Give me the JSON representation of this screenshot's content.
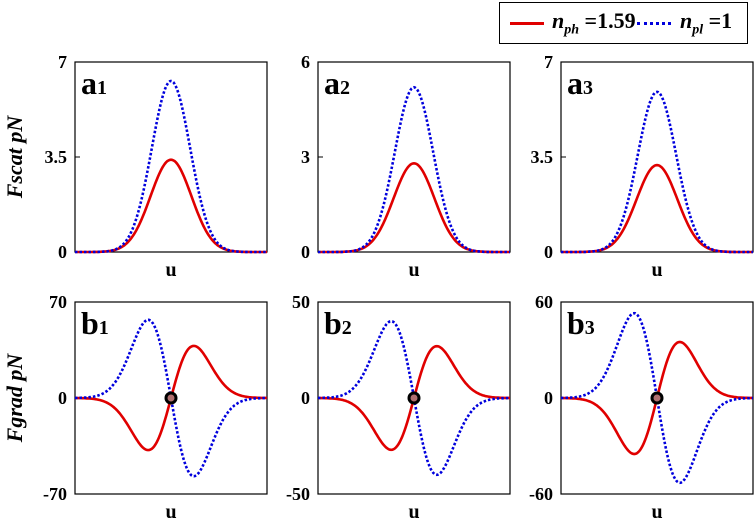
{
  "legend": {
    "series1": {
      "symbol": "n",
      "sub": "ph",
      "value": "=1.59",
      "color": "#e00000",
      "style": "solid"
    },
    "series2": {
      "symbol": "n",
      "sub": "pl",
      "value": "=1",
      "color": "#0000dd",
      "style": "dotted"
    }
  },
  "chart_data": [
    {
      "type": "line",
      "panel_label": "a",
      "panel_sub": "1",
      "xlabel": "u",
      "ylabel": "Fscat pN",
      "ylim": [
        0,
        7
      ],
      "yticks": [
        "0",
        "3.5",
        "7"
      ],
      "shape": "gaussian",
      "series": [
        {
          "values_peak": 3.4,
          "color": "#e00000",
          "style": "solid"
        },
        {
          "values_peak": 6.3,
          "color": "#0000dd",
          "style": "dotted"
        }
      ]
    },
    {
      "type": "line",
      "panel_label": "a",
      "panel_sub": "2",
      "xlabel": "u",
      "ylabel": "",
      "ylim": [
        0,
        6
      ],
      "yticks": [
        "0",
        "3",
        "6"
      ],
      "shape": "gaussian",
      "series": [
        {
          "values_peak": 2.8,
          "color": "#e00000",
          "style": "solid"
        },
        {
          "values_peak": 5.2,
          "color": "#0000dd",
          "style": "dotted"
        }
      ]
    },
    {
      "type": "line",
      "panel_label": "a",
      "panel_sub": "3",
      "xlabel": "u",
      "ylabel": "",
      "ylim": [
        0,
        7
      ],
      "yticks": [
        "0",
        "3.5",
        "7"
      ],
      "shape": "gaussian",
      "series": [
        {
          "values_peak": 3.2,
          "color": "#e00000",
          "style": "solid"
        },
        {
          "values_peak": 5.9,
          "color": "#0000dd",
          "style": "dotted"
        }
      ]
    },
    {
      "type": "line",
      "panel_label": "b",
      "panel_sub": "1",
      "xlabel": "u",
      "ylabel": "Fgrad pN",
      "ylim": [
        -70,
        70
      ],
      "yticks": [
        "-70",
        "0",
        "70"
      ],
      "shape": "derivative",
      "series": [
        {
          "values_peak": -38,
          "color": "#e00000",
          "style": "solid"
        },
        {
          "values_peak": 57,
          "color": "#0000dd",
          "style": "dotted"
        }
      ]
    },
    {
      "type": "line",
      "panel_label": "b",
      "panel_sub": "2",
      "xlabel": "u",
      "ylabel": "",
      "ylim": [
        -50,
        50
      ],
      "yticks": [
        "-50",
        "0",
        "50"
      ],
      "shape": "derivative",
      "series": [
        {
          "values_peak": -27,
          "color": "#e00000",
          "style": "solid"
        },
        {
          "values_peak": 40,
          "color": "#0000dd",
          "style": "dotted"
        }
      ]
    },
    {
      "type": "line",
      "panel_label": "b",
      "panel_sub": "3",
      "xlabel": "u",
      "ylabel": "",
      "ylim": [
        -60,
        60
      ],
      "yticks": [
        "-60",
        "0",
        "60"
      ],
      "shape": "derivative",
      "series": [
        {
          "values_peak": -35,
          "color": "#e00000",
          "style": "solid"
        },
        {
          "values_peak": 53,
          "color": "#0000dd",
          "style": "dotted"
        }
      ]
    }
  ]
}
